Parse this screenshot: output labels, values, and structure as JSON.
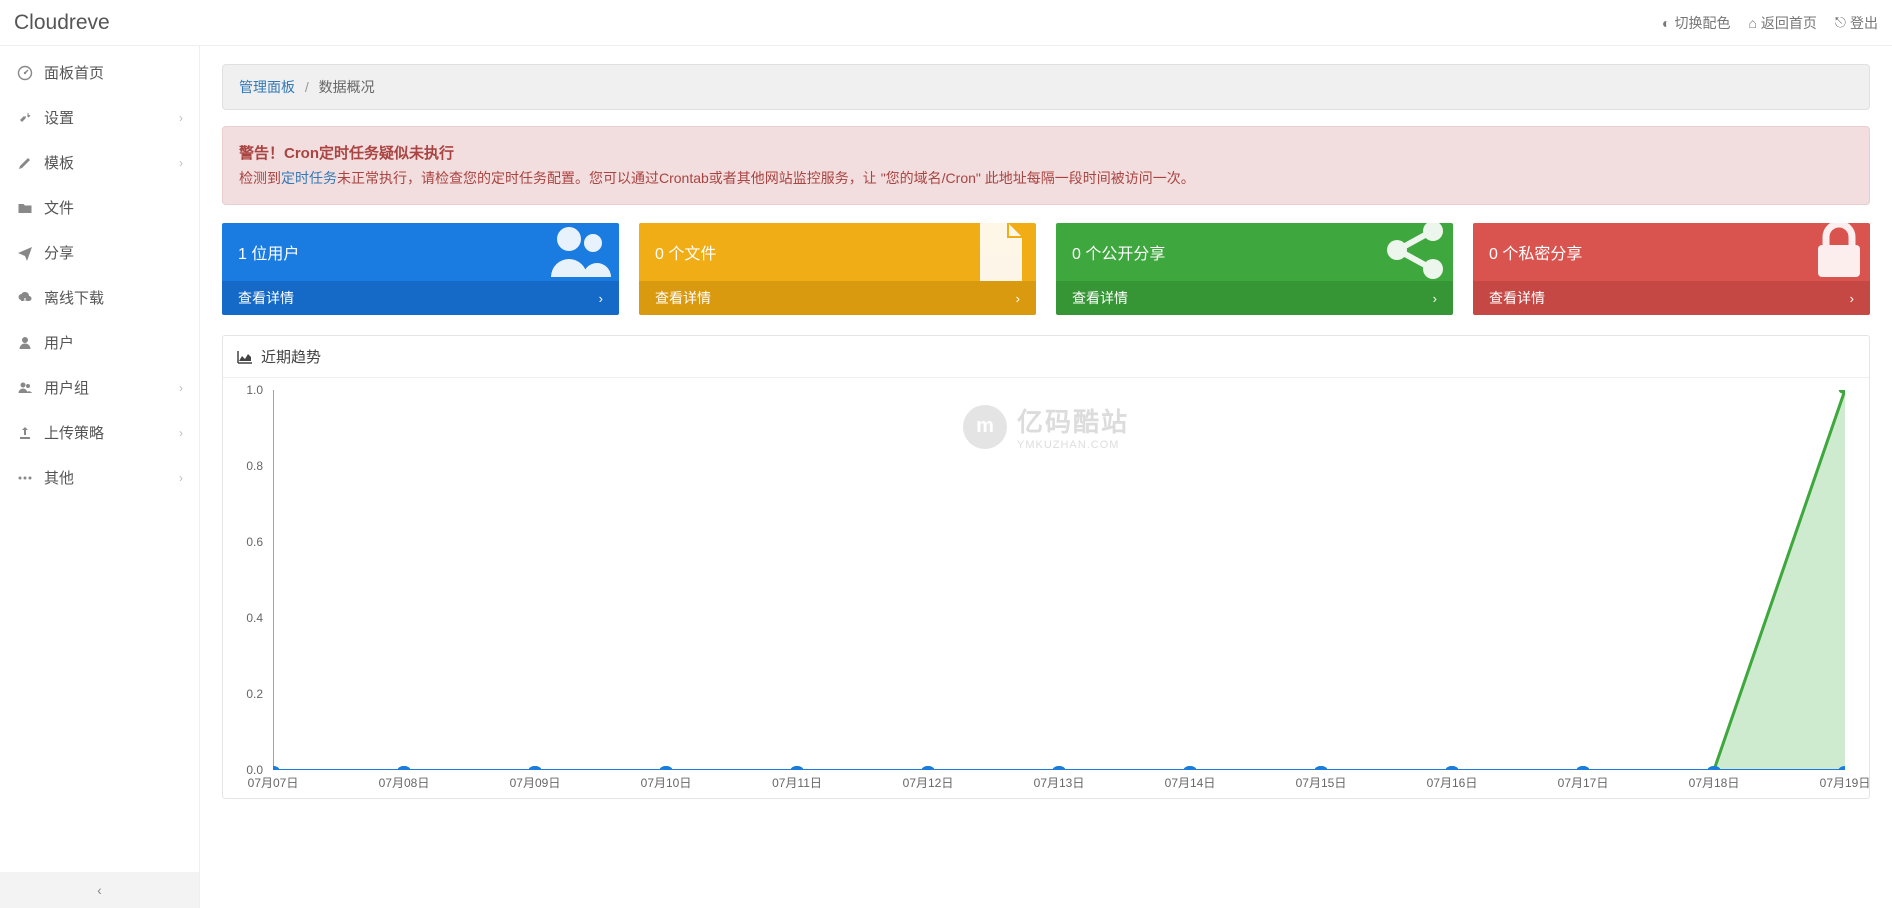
{
  "brand": "Cloudreve",
  "topbar": {
    "theme": "切换配色",
    "home": "返回首页",
    "logout": "登出"
  },
  "sidebar": {
    "items": [
      {
        "label": "面板首页",
        "icon": "dashboard",
        "expandable": false
      },
      {
        "label": "设置",
        "icon": "wrench",
        "expandable": true
      },
      {
        "label": "模板",
        "icon": "pencil",
        "expandable": true
      },
      {
        "label": "文件",
        "icon": "folder",
        "expandable": false
      },
      {
        "label": "分享",
        "icon": "send",
        "expandable": false
      },
      {
        "label": "离线下载",
        "icon": "cloud-down",
        "expandable": false
      },
      {
        "label": "用户",
        "icon": "user",
        "expandable": false
      },
      {
        "label": "用户组",
        "icon": "users",
        "expandable": true
      },
      {
        "label": "上传策略",
        "icon": "upload",
        "expandable": true
      },
      {
        "label": "其他",
        "icon": "ellipsis",
        "expandable": true
      }
    ]
  },
  "breadcrumb": {
    "root": "管理面板",
    "current": "数据概况"
  },
  "alert": {
    "title": "警告！Cron定时任务疑似未执行",
    "body_pre": "检测到",
    "body_link": "定时任务",
    "body_post": "未正常执行，请检查您的定时任务配置。您可以通过Crontab或者其他网站监控服务，让 \"您的域名/Cron\" 此地址每隔一段时间被访问一次。"
  },
  "stats": [
    {
      "label": "1 位用户",
      "action": "查看详情",
      "bg": "#1a7ce0",
      "bottom_bg": "#1569c7",
      "icon": "users"
    },
    {
      "label": "0 个文件",
      "action": "查看详情",
      "bg": "#f0ad16",
      "bottom_bg": "#d99a0f",
      "icon": "file"
    },
    {
      "label": "0 个公开分享",
      "action": "查看详情",
      "bg": "#3ea73e",
      "bottom_bg": "#369636",
      "icon": "share"
    },
    {
      "label": "0 个私密分享",
      "action": "查看详情",
      "bg": "#d9534f",
      "bottom_bg": "#c64844",
      "icon": "lock"
    }
  ],
  "trend_panel": {
    "title": "近期趋势"
  },
  "chart": {
    "type": "line-area",
    "x_labels": [
      "07月07日",
      "07月08日",
      "07月09日",
      "07月10日",
      "07月11日",
      "07月12日",
      "07月13日",
      "07月14日",
      "07月15日",
      "07月16日",
      "07月17日",
      "07月18日",
      "07月19日"
    ],
    "y_ticks": [
      0,
      0.2,
      0.4,
      0.6,
      0.8,
      1.0
    ],
    "ylim": [
      0,
      1.0
    ],
    "series": [
      {
        "name": "blue",
        "color": "#1a7ce0",
        "fill": "none",
        "values": [
          0,
          0,
          0,
          0,
          0,
          0,
          0,
          0,
          0,
          0,
          0,
          0,
          0
        ],
        "marker": "circle",
        "marker_size": 4
      },
      {
        "name": "green",
        "color": "#3ea73e",
        "fill": "#a8dba8",
        "fill_opacity": 0.55,
        "values": [
          0,
          0,
          0,
          0,
          0,
          0,
          0,
          0,
          0,
          0,
          0,
          0,
          1.0
        ],
        "marker": "circle",
        "marker_size": 4
      }
    ],
    "axis_color": "#888",
    "label_fontsize": 12,
    "label_color": "#666"
  },
  "watermark": {
    "badge": "m",
    "title": "亿码酷站",
    "sub": "YMKUZHAN.COM"
  }
}
